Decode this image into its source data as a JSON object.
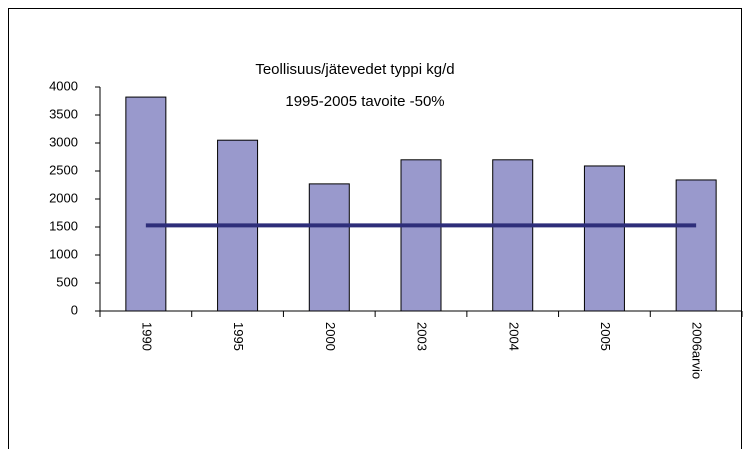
{
  "chart_data": {
    "type": "bar",
    "title": "Teollisuus/jätevedet typpi kg/d",
    "subtitle": "1995-2005 tavoite -50%",
    "categories": [
      "1990",
      "1995",
      "2000",
      "2003",
      "2004",
      "2005",
      "2006arvio"
    ],
    "series": [
      {
        "type": "bar",
        "color": "#9999cc",
        "values": [
          3820,
          3050,
          2270,
          2700,
          2700,
          2590,
          2340
        ]
      },
      {
        "type": "line",
        "color": "#2e2e7a",
        "values": [
          1530,
          1530,
          1530,
          1530,
          1530,
          1530,
          1530
        ]
      }
    ],
    "ylim": [
      0,
      4000
    ],
    "yticks": [
      0,
      500,
      1000,
      1500,
      2000,
      2500,
      3000,
      3500,
      4000
    ]
  }
}
